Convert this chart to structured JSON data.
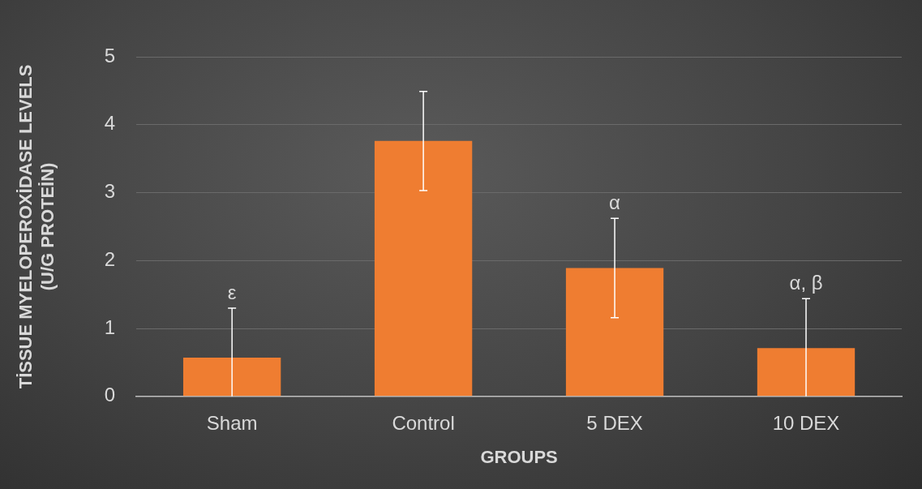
{
  "chart_data": {
    "type": "bar",
    "xlabel": "GROUPS",
    "ylabel": "TİSSUE MYELOPEROXİDASE LEVELS\n(U/G PROTEİN)",
    "categories": [
      "Sham",
      "Control",
      "5 DEX",
      "10 DEX"
    ],
    "values": [
      0.57,
      3.76,
      1.89,
      0.71
    ],
    "errors": [
      0.73,
      0.73,
      0.73,
      0.73
    ],
    "color": "#ef7d31",
    "ylim": [
      0,
      5
    ],
    "yticks": [
      0,
      1,
      2,
      3,
      4,
      5
    ],
    "grid": "y",
    "value_labels": [
      "ε",
      null,
      "α",
      "α, β"
    ]
  }
}
